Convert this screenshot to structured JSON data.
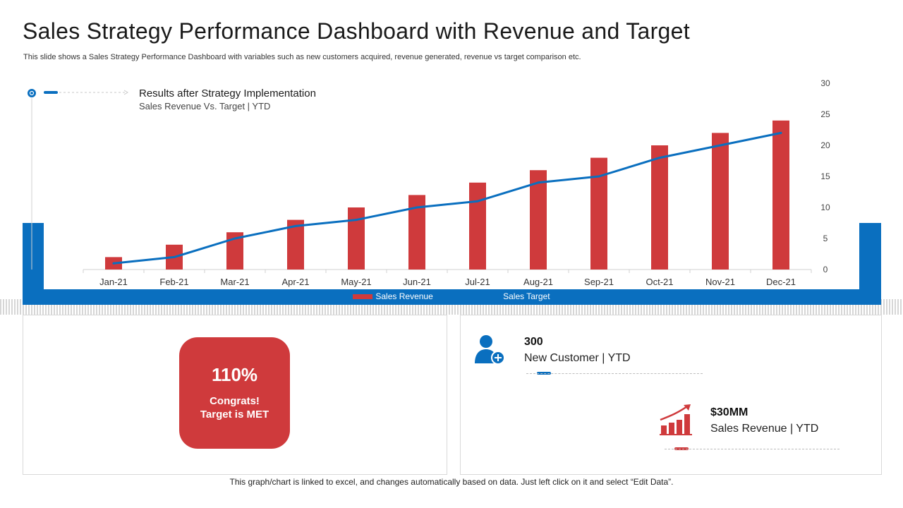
{
  "title": "Sales Strategy Performance Dashboard with Revenue and Target",
  "subtitle": "This slide shows a Sales Strategy Performance Dashboard with variables such as new customers acquired, revenue generated, revenue vs target comparison etc.",
  "colors": {
    "red": "#cf3a3c",
    "blue": "#0a6fbf",
    "axis": "#d0d0d0"
  },
  "chart_data": {
    "type": "bar",
    "title": "Results after Strategy Implementation",
    "subtitle": "Sales Revenue Vs. Target | YTD",
    "categories": [
      "Jan-21",
      "Feb-21",
      "Mar-21",
      "Apr-21",
      "May-21",
      "Jun-21",
      "Jul-21",
      "Aug-21",
      "Sep-21",
      "Oct-21",
      "Nov-21",
      "Dec-21"
    ],
    "series": [
      {
        "name": "Sales Revenue",
        "type": "bar",
        "color": "#cf3a3c",
        "values": [
          2,
          4,
          6,
          8,
          10,
          12,
          14,
          16,
          18,
          20,
          22,
          24
        ]
      },
      {
        "name": "Sales Target",
        "type": "line",
        "color": "#0a6fbf",
        "values": [
          1,
          2,
          5,
          7,
          8,
          10,
          11,
          14,
          15,
          18,
          20,
          22
        ]
      }
    ],
    "ylim": [
      0,
      30
    ],
    "yticks": [
      0,
      5,
      10,
      15,
      20,
      25,
      30
    ],
    "y_axis_side": "right",
    "grid": false,
    "legend": "bottom"
  },
  "kpi": {
    "percent": "110%",
    "line1": "Congrats!",
    "line2": "Target is MET"
  },
  "stats": [
    {
      "value": "300",
      "label": "New Customer | YTD",
      "icon": "user-add-icon"
    },
    {
      "value": "$30MM",
      "label": "Sales Revenue | YTD",
      "icon": "growth-chart-icon"
    }
  ],
  "footnote": "This graph/chart is linked to excel, and changes automatically based on data. Just left click on it and select “Edit Data”."
}
